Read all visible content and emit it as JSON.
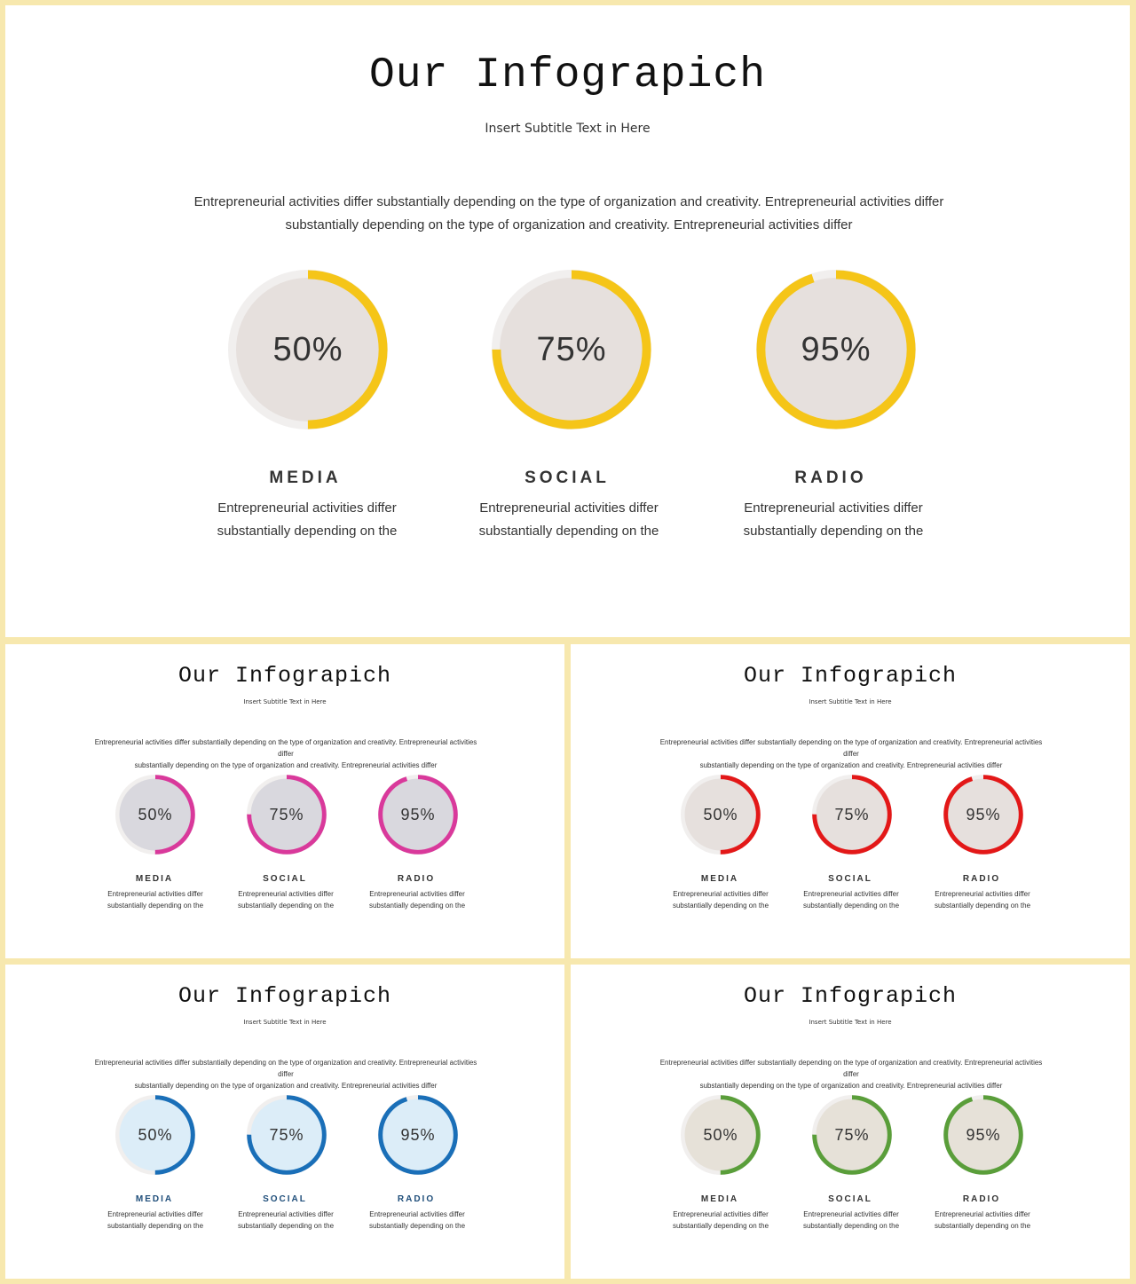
{
  "slides": [
    {
      "title": "Our Infograpich",
      "subtitle": "Insert Subtitle Text in Here",
      "description_line1": "Entrepreneurial activities differ substantially depending on the type of organization and creativity. Entrepreneurial activities differ",
      "description_line2": "substantially depending on the type of organization and creativity. Entrepreneurial activities differ",
      "accent_color": "#f5c518",
      "circle_fill": "#e6e0dd",
      "title_color": "#333333",
      "items": [
        {
          "percent_label": "50%",
          "value": 50,
          "name": "MEDIA",
          "desc_line1": "Entrepreneurial activities differ",
          "desc_line2": "substantially depending on the"
        },
        {
          "percent_label": "75%",
          "value": 75,
          "name": "SOCIAL",
          "desc_line1": "Entrepreneurial activities differ",
          "desc_line2": "substantially depending on the"
        },
        {
          "percent_label": "95%",
          "value": 95,
          "name": "RADIO",
          "desc_line1": "Entrepreneurial activities differ",
          "desc_line2": "substantially depending on the"
        }
      ]
    },
    {
      "title": "Our Infograpich",
      "subtitle": "Insert Subtitle Text in Here",
      "description_line1": "Entrepreneurial activities differ substantially depending on the type of organization and creativity. Entrepreneurial activities differ",
      "description_line2": "substantially depending on the type of organization and creativity. Entrepreneurial activities differ",
      "accent_color": "#d9399b",
      "circle_fill": "#d9d8de",
      "title_color": "#333333",
      "items": [
        {
          "percent_label": "50%",
          "value": 50,
          "name": "MEDIA",
          "desc_line1": "Entrepreneurial activities differ",
          "desc_line2": "substantially depending on the"
        },
        {
          "percent_label": "75%",
          "value": 75,
          "name": "SOCIAL",
          "desc_line1": "Entrepreneurial activities differ",
          "desc_line2": "substantially depending on the"
        },
        {
          "percent_label": "95%",
          "value": 95,
          "name": "RADIO",
          "desc_line1": "Entrepreneurial activities differ",
          "desc_line2": "substantially depending on the"
        }
      ]
    },
    {
      "title": "Our Infograpich",
      "subtitle": "Insert Subtitle Text in Here",
      "description_line1": "Entrepreneurial activities differ substantially depending on the type of organization and creativity. Entrepreneurial activities differ",
      "description_line2": "substantially depending on the type of organization and creativity. Entrepreneurial activities differ",
      "accent_color": "#e31818",
      "circle_fill": "#e6e0dd",
      "title_color": "#333333",
      "items": [
        {
          "percent_label": "50%",
          "value": 50,
          "name": "MEDIA",
          "desc_line1": "Entrepreneurial activities differ",
          "desc_line2": "substantially depending on the"
        },
        {
          "percent_label": "75%",
          "value": 75,
          "name": "SOCIAL",
          "desc_line1": "Entrepreneurial activities differ",
          "desc_line2": "substantially depending on the"
        },
        {
          "percent_label": "95%",
          "value": 95,
          "name": "RADIO",
          "desc_line1": "Entrepreneurial activities differ",
          "desc_line2": "substantially depending on the"
        }
      ]
    },
    {
      "title": "Our Infograpich",
      "subtitle": "Insert Subtitle Text in Here",
      "description_line1": "Entrepreneurial activities differ substantially depending on the type of organization and creativity. Entrepreneurial activities differ",
      "description_line2": "substantially depending on the type of organization and creativity. Entrepreneurial activities differ",
      "accent_color": "#1a6fb8",
      "circle_fill": "#dcedf8",
      "title_color": "#1f4e7a",
      "items": [
        {
          "percent_label": "50%",
          "value": 50,
          "name": "MEDIA",
          "desc_line1": "Entrepreneurial activities differ",
          "desc_line2": "substantially depending on the"
        },
        {
          "percent_label": "75%",
          "value": 75,
          "name": "SOCIAL",
          "desc_line1": "Entrepreneurial activities differ",
          "desc_line2": "substantially depending on the"
        },
        {
          "percent_label": "95%",
          "value": 95,
          "name": "RADIO",
          "desc_line1": "Entrepreneurial activities differ",
          "desc_line2": "substantially depending on the"
        }
      ]
    },
    {
      "title": "Our Infograpich",
      "subtitle": "Insert Subtitle Text in Here",
      "description_line1": "Entrepreneurial activities differ substantially depending on the type of organization and creativity. Entrepreneurial activities differ",
      "description_line2": "substantially depending on the type of organization and creativity. Entrepreneurial activities differ",
      "accent_color": "#5a9e3a",
      "circle_fill": "#e6e1d8",
      "title_color": "#333333",
      "items": [
        {
          "percent_label": "50%",
          "value": 50,
          "name": "MEDIA",
          "desc_line1": "Entrepreneurial activities differ",
          "desc_line2": "substantially depending on the"
        },
        {
          "percent_label": "75%",
          "value": 75,
          "name": "SOCIAL",
          "desc_line1": "Entrepreneurial activities differ",
          "desc_line2": "substantially depending on the"
        },
        {
          "percent_label": "95%",
          "value": 95,
          "name": "RADIO",
          "desc_line1": "Entrepreneurial activities differ",
          "desc_line2": "substantially depending on the"
        }
      ]
    }
  ]
}
